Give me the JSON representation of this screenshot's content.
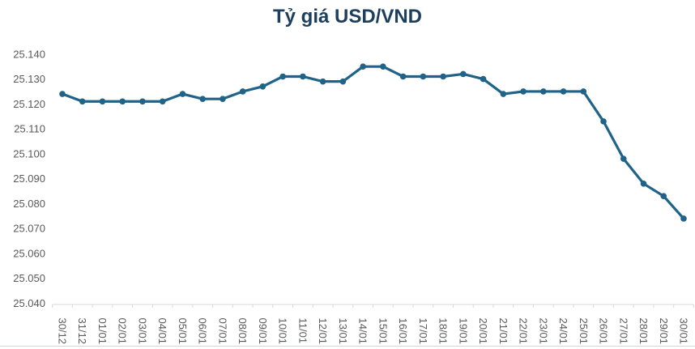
{
  "page": {
    "title": "Tỷ giá USD/VND"
  },
  "chart_data": {
    "type": "line",
    "title": "Tỷ giá USD/VND",
    "categories": [
      "30/12",
      "31/12",
      "01/01",
      "02/01",
      "03/01",
      "04/01",
      "05/01",
      "06/01",
      "07/01",
      "08/01",
      "09/01",
      "10/01",
      "11/01",
      "12/01",
      "13/01",
      "14/01",
      "15/01",
      "16/01",
      "17/01",
      "18/01",
      "19/01",
      "20/01",
      "21/01",
      "22/01",
      "23/01",
      "24/01",
      "25/01",
      "26/01",
      "27/01",
      "28/01",
      "29/01",
      "30/01"
    ],
    "series": [
      {
        "name": "USD/VND",
        "values": [
          25124,
          25121,
          25121,
          25121,
          25121,
          25121,
          25124,
          25122,
          25122,
          25125,
          25127,
          25131,
          25131,
          25129,
          25129,
          25135,
          25135,
          25131,
          25131,
          25131,
          25132,
          25130,
          25124,
          25125,
          25125,
          25125,
          25125,
          25113,
          25098,
          25088,
          25083,
          25074
        ]
      }
    ],
    "ylim": [
      25040,
      25140
    ],
    "y_tick_values": [
      25040,
      25050,
      25060,
      25070,
      25080,
      25090,
      25100,
      25110,
      25120,
      25130,
      25140
    ],
    "y_tick_labels": [
      "25.040",
      "25.050",
      "25.060",
      "25.070",
      "25.080",
      "25.090",
      "25.100",
      "25.110",
      "25.120",
      "25.130",
      "25.140"
    ],
    "x_tick_rotation_deg": 90,
    "grid": false,
    "legend_position": "none",
    "marker": "circle"
  },
  "colors": {
    "title": "#1c3f5e",
    "line": "#1f6388",
    "marker": "#1f6388",
    "tick_label": "#595959",
    "axis_line": "#d9d9d9",
    "bottom_border": "#ccd6e3"
  }
}
